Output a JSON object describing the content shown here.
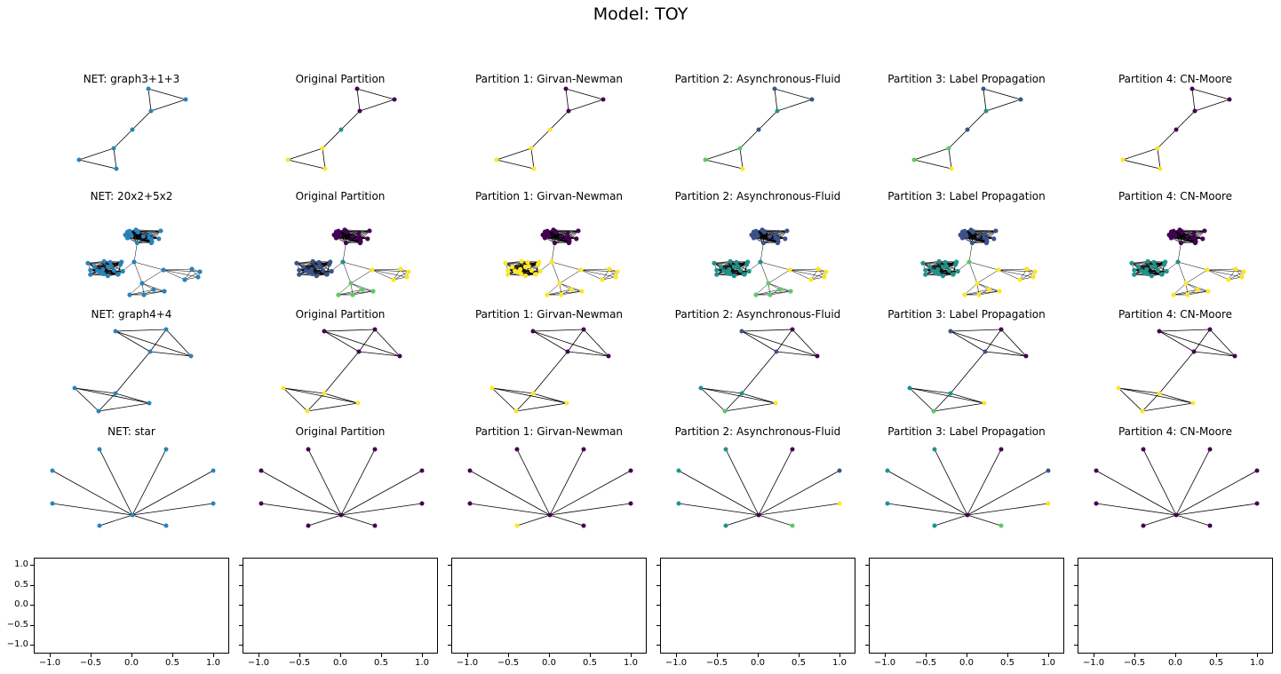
{
  "figure": {
    "title": "Model: TOY"
  },
  "columns": [
    "NET",
    "Original Partition",
    "Partition 1: Girvan-Newman",
    "Partition 2: Asynchronous-Fluid",
    "Partition 3: Label Propagation",
    "Partition 4: CN-Moore"
  ],
  "colors": {
    "blue": "#2b83ba",
    "purple": "#440154",
    "darkblue": "#3b528b",
    "teal": "#21918c",
    "green": "#5ec962",
    "yellow": "#fde725",
    "edge": "#000000"
  },
  "rows": [
    {
      "net_title": "NET: graph3+1+3",
      "titles": [
        "NET: graph3+1+3",
        "Original Partition",
        "Partition 1: Girvan-Newman",
        "Partition 2: Asynchronous-Fluid",
        "Partition 3: Label Propagation",
        "Partition 4: CN-Moore"
      ],
      "graph": "graph3+1+3"
    },
    {
      "net_title": "NET: 20x2+5x2",
      "titles": [
        "NET: 20x2+5x2",
        "Original Partition",
        "Partition 1: Girvan-Newman",
        "Partition 2: Asynchronous-Fluid",
        "Partition 3: Label Propagation",
        "Partition 4: CN-Moore"
      ],
      "graph": "20x2+5x2"
    },
    {
      "net_title": "NET: graph4+4",
      "titles": [
        "NET: graph4+4",
        "Original Partition",
        "Partition 1: Girvan-Newman",
        "Partition 2: Asynchronous-Fluid",
        "Partition 3: Label Propagation",
        "Partition 4: CN-Moore"
      ],
      "graph": "graph4+4"
    },
    {
      "net_title": "NET: star",
      "titles": [
        "NET: star",
        "Original Partition",
        "Partition 1: Girvan-Newman",
        "Partition 2: Asynchronous-Fluid",
        "Partition 3: Label Propagation",
        "Partition 4: CN-Moore"
      ],
      "graph": "star"
    }
  ],
  "empty_axes": {
    "yticks": [
      "1.0",
      "0.5",
      "0.0",
      "−0.5",
      "−1.0"
    ],
    "xticks": [
      "−1.0",
      "−0.5",
      "0.0",
      "0.5",
      "1.0"
    ]
  }
}
